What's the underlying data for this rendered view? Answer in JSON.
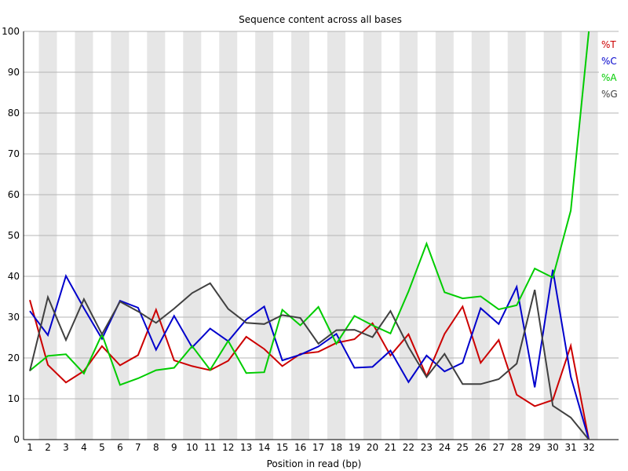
{
  "chart_data": {
    "type": "line",
    "title": "Sequence content across all bases",
    "xlabel": "Position in read (bp)",
    "ylabel": "",
    "ylim": [
      0,
      100
    ],
    "yticks": [
      0,
      10,
      20,
      30,
      40,
      50,
      60,
      70,
      80,
      90,
      100
    ],
    "categories": [
      "1",
      "2",
      "3",
      "4",
      "5",
      "6",
      "7",
      "8",
      "9",
      "10",
      "11",
      "12",
      "13",
      "14",
      "15",
      "16",
      "17",
      "18",
      "19",
      "20",
      "21",
      "22",
      "23",
      "24",
      "25",
      "26",
      "27",
      "28",
      "29",
      "30",
      "31",
      "32"
    ],
    "grid": true,
    "legend_position": "top-right",
    "series": [
      {
        "name": "%T",
        "color": "#cc0000",
        "values": [
          34.2,
          18.3,
          14.0,
          16.8,
          22.9,
          18.2,
          20.7,
          31.8,
          19.4,
          18.0,
          17.0,
          19.3,
          25.2,
          22.2,
          18.0,
          21.0,
          21.5,
          23.7,
          24.6,
          28.5,
          20.6,
          25.8,
          15.5,
          25.9,
          32.6,
          18.8,
          24.4,
          11.0,
          8.2,
          9.7,
          23.0,
          0.0
        ]
      },
      {
        "name": "%C",
        "color": "#0000cc",
        "values": [
          31.5,
          25.6,
          40.1,
          32.2,
          24.7,
          34.0,
          32.3,
          22.0,
          30.3,
          22.6,
          27.2,
          24.1,
          29.4,
          32.6,
          19.4,
          20.8,
          22.8,
          25.9,
          17.6,
          17.8,
          21.8,
          14.1,
          20.6,
          16.7,
          18.8,
          32.2,
          28.3,
          37.4,
          12.8,
          41.6,
          15.4,
          0.0
        ]
      },
      {
        "name": "%A",
        "color": "#00cc00",
        "values": [
          16.9,
          20.5,
          20.9,
          16.2,
          25.8,
          13.4,
          15.0,
          17.0,
          17.6,
          22.9,
          17.1,
          24.2,
          16.3,
          16.5,
          31.8,
          28.0,
          32.5,
          23.5,
          30.3,
          28.0,
          26.0,
          36.3,
          48.0,
          36.1,
          34.6,
          35.1,
          31.9,
          32.9,
          41.9,
          39.7,
          56.1,
          100.0
        ]
      },
      {
        "name": "%G",
        "color": "#404040",
        "values": [
          16.8,
          34.9,
          24.4,
          34.4,
          25.8,
          33.8,
          31.4,
          28.6,
          32.1,
          35.9,
          38.3,
          32.0,
          28.6,
          28.3,
          30.5,
          29.8,
          23.5,
          26.8,
          26.9,
          25.1,
          31.5,
          22.7,
          15.3,
          21.0,
          13.6,
          13.6,
          14.8,
          18.6,
          36.7,
          8.3,
          5.4,
          0.0
        ]
      }
    ]
  }
}
